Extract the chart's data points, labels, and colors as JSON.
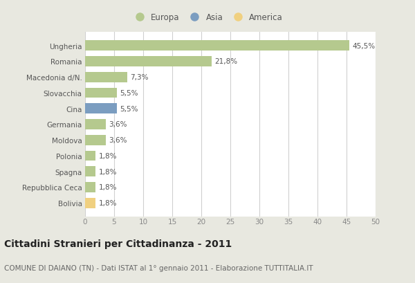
{
  "categories": [
    "Ungheria",
    "Romania",
    "Macedonia d/N.",
    "Slovacchia",
    "Cina",
    "Germania",
    "Moldova",
    "Polonia",
    "Spagna",
    "Repubblica Ceca",
    "Bolivia"
  ],
  "values": [
    45.5,
    21.8,
    7.3,
    5.5,
    5.5,
    3.6,
    3.6,
    1.8,
    1.8,
    1.8,
    1.8
  ],
  "labels": [
    "45,5%",
    "21,8%",
    "7,3%",
    "5,5%",
    "5,5%",
    "3,6%",
    "3,6%",
    "1,8%",
    "1,8%",
    "1,8%",
    "1,8%"
  ],
  "colors": [
    "#b5c98e",
    "#b5c98e",
    "#b5c98e",
    "#b5c98e",
    "#7b9dc0",
    "#b5c98e",
    "#b5c98e",
    "#b5c98e",
    "#b5c98e",
    "#b5c98e",
    "#f0d080"
  ],
  "legend_labels": [
    "Europa",
    "Asia",
    "America"
  ],
  "legend_colors": [
    "#b5c98e",
    "#7b9dc0",
    "#f0d080"
  ],
  "xlim": [
    0,
    50
  ],
  "xticks": [
    0,
    5,
    10,
    15,
    20,
    25,
    30,
    35,
    40,
    45,
    50
  ],
  "title": "Cittadini Stranieri per Cittadinanza - 2011",
  "subtitle": "COMUNE DI DAIANO (TN) - Dati ISTAT al 1° gennaio 2011 - Elaborazione TUTTITALIA.IT",
  "fig_bg_color": "#e8e8e0",
  "plot_bg_color": "#ffffff",
  "grid_color": "#d0d0d0",
  "title_fontsize": 10,
  "subtitle_fontsize": 7.5,
  "label_fontsize": 7.5,
  "tick_fontsize": 7.5,
  "ylabel_fontsize": 7.5
}
